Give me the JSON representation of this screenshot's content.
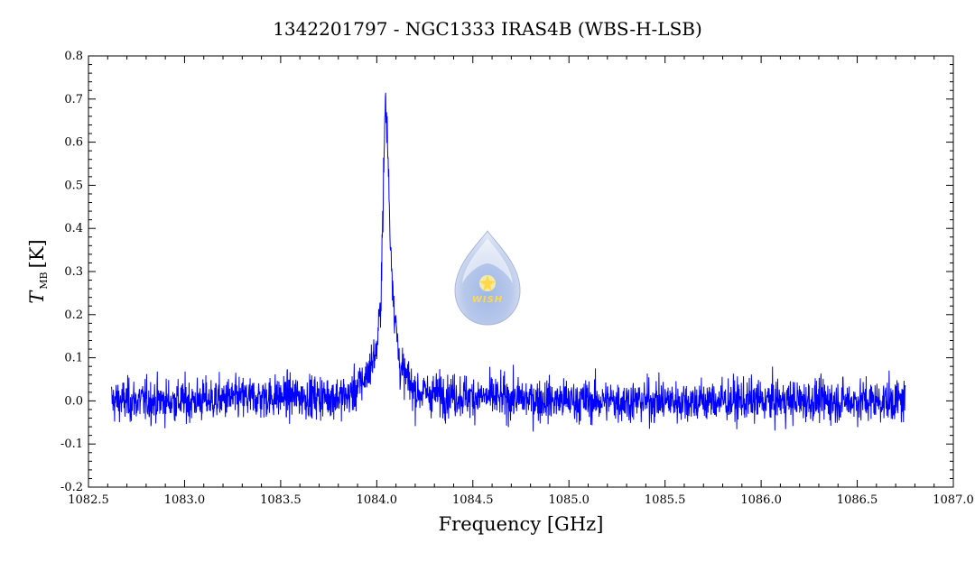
{
  "chart_data": {
    "type": "line",
    "title": "1342201797 - NGC1333 IRAS4B (WBS-H-LSB)",
    "xlabel": "Frequency [GHz]",
    "ylabel_main": "T",
    "ylabel_sub": "MB",
    "ylabel_unit": "[K]",
    "xlim": [
      1082.5,
      1087.0
    ],
    "ylim": [
      -0.2,
      0.8
    ],
    "x_ticks": [
      "1082.5",
      "1083.0",
      "1083.5",
      "1084.0",
      "1084.5",
      "1085.0",
      "1085.5",
      "1086.0",
      "1086.5",
      "1087.0"
    ],
    "y_ticks": [
      "-0.2",
      "-0.1",
      "0.0",
      "0.1",
      "0.2",
      "0.3",
      "0.4",
      "0.5",
      "0.6",
      "0.7",
      "0.8"
    ],
    "line_color": "#0000ff",
    "grid": false,
    "series": [
      {
        "x": [
          1082.62,
          1083.0,
          1083.5,
          1083.85,
          1083.9,
          1083.95,
          1084.0,
          1084.02,
          1084.035,
          1084.045,
          1084.055,
          1084.07,
          1084.09,
          1084.12,
          1084.2,
          1084.5,
          1085.0,
          1085.5,
          1086.0,
          1086.5,
          1086.75
        ],
        "values": [
          0.0,
          0.0,
          0.01,
          0.01,
          0.03,
          0.06,
          0.12,
          0.22,
          0.5,
          0.7,
          0.62,
          0.38,
          0.22,
          0.08,
          0.02,
          0.01,
          0.0,
          0.0,
          0.0,
          0.0,
          0.0
        ]
      }
    ],
    "noise_rms": 0.035
  },
  "logo": {
    "text": "WISH"
  }
}
